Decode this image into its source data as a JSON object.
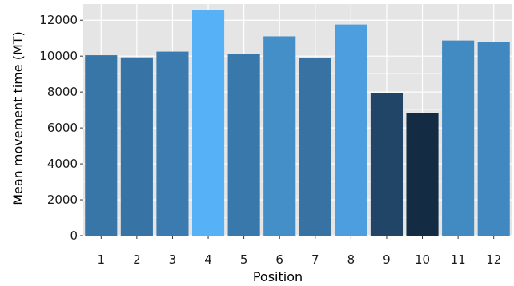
{
  "chart_data": {
    "type": "bar",
    "title": "",
    "xlabel": "Position",
    "ylabel": "Mean movement time (MT)",
    "categories": [
      "1",
      "2",
      "3",
      "4",
      "5",
      "6",
      "7",
      "8",
      "9",
      "10",
      "11",
      "12"
    ],
    "values": [
      10050,
      9930,
      10250,
      12550,
      10100,
      11100,
      9880,
      11760,
      7930,
      6830,
      10870,
      10800
    ],
    "ylim": [
      0,
      12900
    ],
    "yticks": [
      "0",
      "2000",
      "4000",
      "6000",
      "8000",
      "10000",
      "12000"
    ],
    "grid": true,
    "legend": "none",
    "color_scale": {
      "low": "#132b43",
      "high": "#56b1f7"
    },
    "panel_background": "#e5e5e5",
    "grid_color": "#ffffff"
  }
}
